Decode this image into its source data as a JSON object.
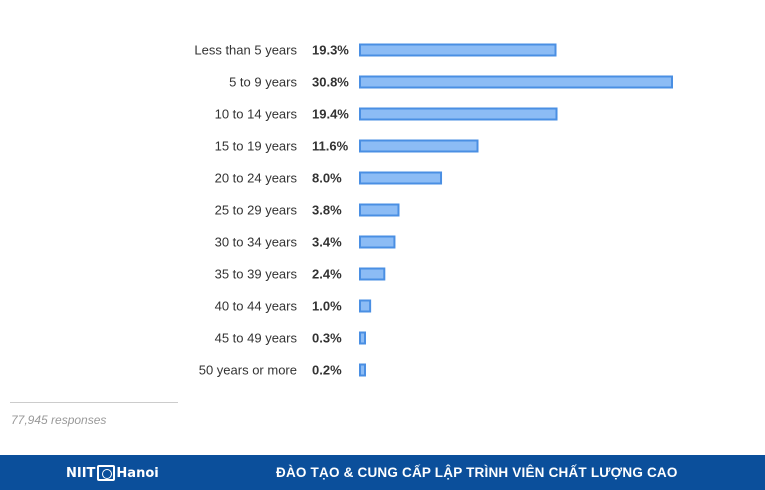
{
  "chart_data": {
    "type": "bar",
    "orientation": "horizontal",
    "categories": [
      "Less than 5 years",
      "5 to 9 years",
      "10 to 14 years",
      "15 to 19 years",
      "20 to 24 years",
      "25 to 29 years",
      "30 to 34 years",
      "35 to 39 years",
      "40 to 44 years",
      "45 to 49 years",
      "50 years or more"
    ],
    "values": [
      19.3,
      30.8,
      19.4,
      11.6,
      8.0,
      3.8,
      3.4,
      2.4,
      1.0,
      0.3,
      0.2
    ],
    "value_labels": [
      "19.3%",
      "30.8%",
      "19.4%",
      "11.6%",
      "8.0%",
      "3.8%",
      "3.4%",
      "2.4%",
      "1.0%",
      "0.3%",
      "0.2%"
    ],
    "title": "",
    "xlabel": "",
    "ylabel": "",
    "xlim": [
      0,
      30.8
    ],
    "grid": false,
    "legend": "none",
    "colors": {
      "bar_fill": "#8cbcf5",
      "bar_stroke": "#4a8fe3"
    }
  },
  "responses_label": "77,945 responses",
  "footer": {
    "logo_prefix": "NIIT",
    "logo_city": "Hanoi",
    "slogan": "ĐÀO TẠO & CUNG CẤP LẬP TRÌNH VIÊN CHẤT LƯỢNG CAO",
    "background": "#0b4f9b"
  }
}
